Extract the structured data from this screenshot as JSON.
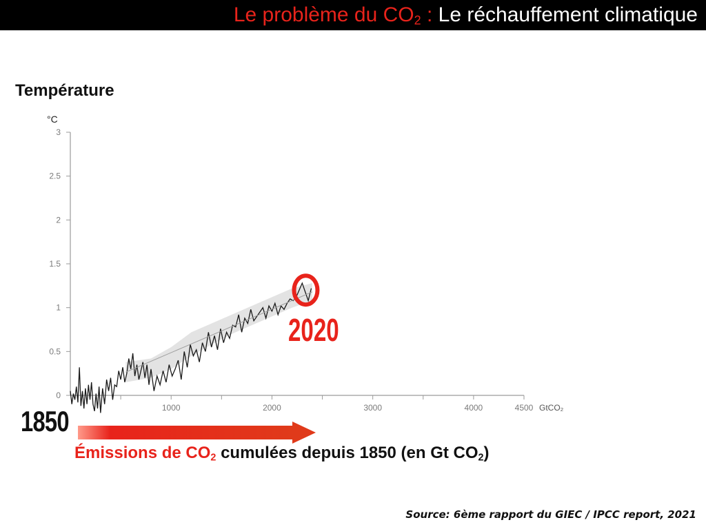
{
  "slide_title": {
    "red_part": "Le problème du CO",
    "red_sub": "2",
    "red_colon": " :",
    "white_part": " Le réchauffement climatique"
  },
  "chart_heading": "Température",
  "annotations": {
    "start_year": "1850",
    "end_year": "2020"
  },
  "emissions_caption": {
    "red_part": "Émissions de CO",
    "red_sub": "2",
    "black_part": " cumulées depuis 1850 (en Gt CO",
    "black_sub": "2",
    "black_end": ")"
  },
  "source": "Source: 6ème rapport du GIEC / IPCC report, 2021",
  "colors": {
    "accent_red": "#e8231b",
    "line": "#1a1a1a",
    "band": "#d9d9d9",
    "axis": "#9a9a9a"
  },
  "chart_data": {
    "type": "line",
    "xlabel": "GtCO₂",
    "ylabel": "°C",
    "xlim": [
      0,
      4500
    ],
    "ylim": [
      0,
      3
    ],
    "x_ticks": [
      1000,
      2000,
      3000,
      4000,
      4500
    ],
    "x_tick_labels": [
      "1000",
      "2000",
      "3000",
      "4000",
      "4500"
    ],
    "y_ticks": [
      0,
      0.5,
      1,
      1.5,
      2,
      2.5,
      3
    ],
    "y_tick_labels": [
      "0",
      "0.5",
      "1",
      "1.5",
      "2",
      "2.5",
      "3"
    ],
    "series": [
      {
        "x": [
          0,
          15,
          30,
          45,
          60,
          75,
          90,
          105,
          120,
          135,
          150,
          165,
          180,
          195,
          210,
          225,
          240,
          255,
          270,
          285,
          300,
          320,
          340,
          360,
          380,
          400,
          420,
          440,
          460,
          480,
          500,
          520,
          540,
          560,
          580,
          600,
          620,
          640,
          660,
          680,
          700,
          720,
          740,
          760,
          780,
          800,
          830,
          860,
          890,
          920,
          950,
          980,
          1010,
          1040,
          1070,
          1100,
          1130,
          1160,
          1190,
          1220,
          1250,
          1280,
          1310,
          1340,
          1370,
          1400,
          1430,
          1460,
          1490,
          1520,
          1550,
          1580,
          1610,
          1640,
          1670,
          1700,
          1730,
          1760,
          1790,
          1820,
          1850,
          1880,
          1910,
          1940,
          1970,
          2000,
          2030,
          2060,
          2090,
          2120,
          2150,
          2180,
          2210,
          2240,
          2270,
          2300,
          2330,
          2360,
          2390
        ],
        "y": [
          0.05,
          -0.1,
          0.02,
          -0.05,
          0.1,
          -0.08,
          0.32,
          -0.12,
          0.05,
          -0.15,
          0.08,
          -0.1,
          0.12,
          -0.05,
          0.15,
          -0.1,
          -0.18,
          0.02,
          -0.15,
          0.1,
          -0.2,
          0.08,
          -0.1,
          0.18,
          0.05,
          0.2,
          -0.05,
          0.12,
          0.1,
          0.28,
          0.18,
          0.32,
          0.15,
          0.25,
          0.42,
          0.3,
          0.48,
          0.22,
          0.35,
          0.18,
          0.28,
          0.38,
          0.2,
          0.35,
          0.12,
          0.3,
          0.05,
          0.22,
          0.12,
          0.28,
          0.15,
          0.35,
          0.22,
          0.3,
          0.4,
          0.18,
          0.5,
          0.32,
          0.58,
          0.45,
          0.52,
          0.38,
          0.6,
          0.5,
          0.72,
          0.55,
          0.68,
          0.52,
          0.76,
          0.6,
          0.72,
          0.65,
          0.8,
          0.78,
          0.92,
          0.72,
          0.88,
          0.82,
          0.98,
          0.85,
          0.9,
          0.95,
          1.0,
          0.88,
          1.02,
          0.96,
          1.05,
          0.92,
          1.02,
          0.98,
          1.05,
          1.1,
          1.08,
          1.12,
          1.2,
          1.28,
          1.18,
          1.08,
          1.22
        ]
      }
    ],
    "band": {
      "x": [
        550,
        800,
        1000,
        1200,
        1400,
        1600,
        1800,
        2000,
        2200,
        2400
      ],
      "lower": [
        0.15,
        0.2,
        0.3,
        0.45,
        0.58,
        0.7,
        0.8,
        0.9,
        1.0,
        1.08
      ],
      "upper": [
        0.38,
        0.42,
        0.55,
        0.72,
        0.82,
        0.92,
        1.02,
        1.12,
        1.22,
        1.28
      ]
    }
  }
}
